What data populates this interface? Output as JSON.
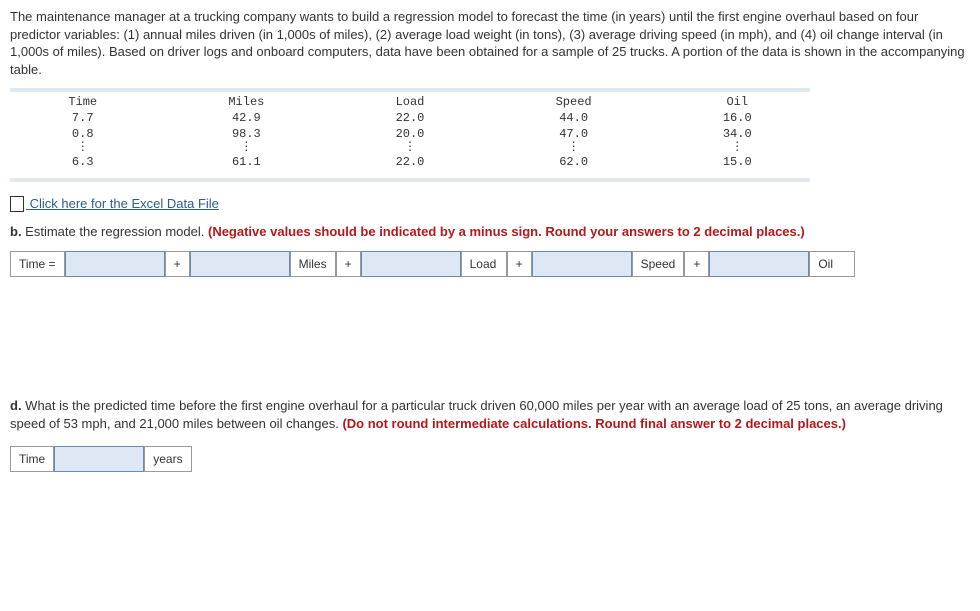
{
  "intro": "The maintenance manager at a trucking company wants to build a regression model to forecast the time (in years) until the first engine overhaul based on four predictor variables: (1) annual miles driven (in 1,000s of miles), (2) average load weight (in tons), (3) average driving speed (in mph), and (4) oil change interval (in 1,000s of miles). Based on driver logs and onboard computers, data have been obtained for a sample of 25 trucks. A portion of the data is shown in the accompanying table.",
  "table": {
    "headers": [
      "Time",
      "Miles",
      "Load",
      "Speed",
      "Oil"
    ],
    "row1": [
      "7.7",
      "42.9",
      "22.0",
      "44.0",
      "16.0"
    ],
    "row2": [
      "0.8",
      "98.3",
      "20.0",
      "47.0",
      "34.0"
    ],
    "vdots": "⋮",
    "row4": [
      "6.3",
      "61.1",
      "22.0",
      "62.0",
      "15.0"
    ]
  },
  "fileLink": {
    "text": " Click here for the Excel Data File"
  },
  "partB": {
    "prefix": "b.",
    "text": " Estimate the regression model. ",
    "instruction": "(Negative values should be indicated by a minus sign. Round your answers to 2 decimal places.)",
    "eqLabel": "Time =",
    "plus": "+",
    "vars": {
      "miles": "Miles",
      "load": "Load",
      "speed": "Speed",
      "oil": "Oil"
    }
  },
  "partD": {
    "prefix": "d.",
    "text": " What is the predicted time before the first engine overhaul for a particular truck driven 60,000 miles per year with an average load of 25 tons, an average driving speed of 53 mph, and 21,000 miles between oil changes. ",
    "instruction": "(Do not round intermediate calculations. Round final answer to 2 decimal places.)",
    "timeLabel": "Time",
    "yearsLabel": "years"
  },
  "colors": {
    "text": "#333333",
    "redBold": "#b3181b",
    "link": "#2a5e8c",
    "bar": "#dfe9f2",
    "inputBg": "#dde8f4",
    "inputBorder": "#6a8bb0",
    "cellBorder": "#999999"
  }
}
